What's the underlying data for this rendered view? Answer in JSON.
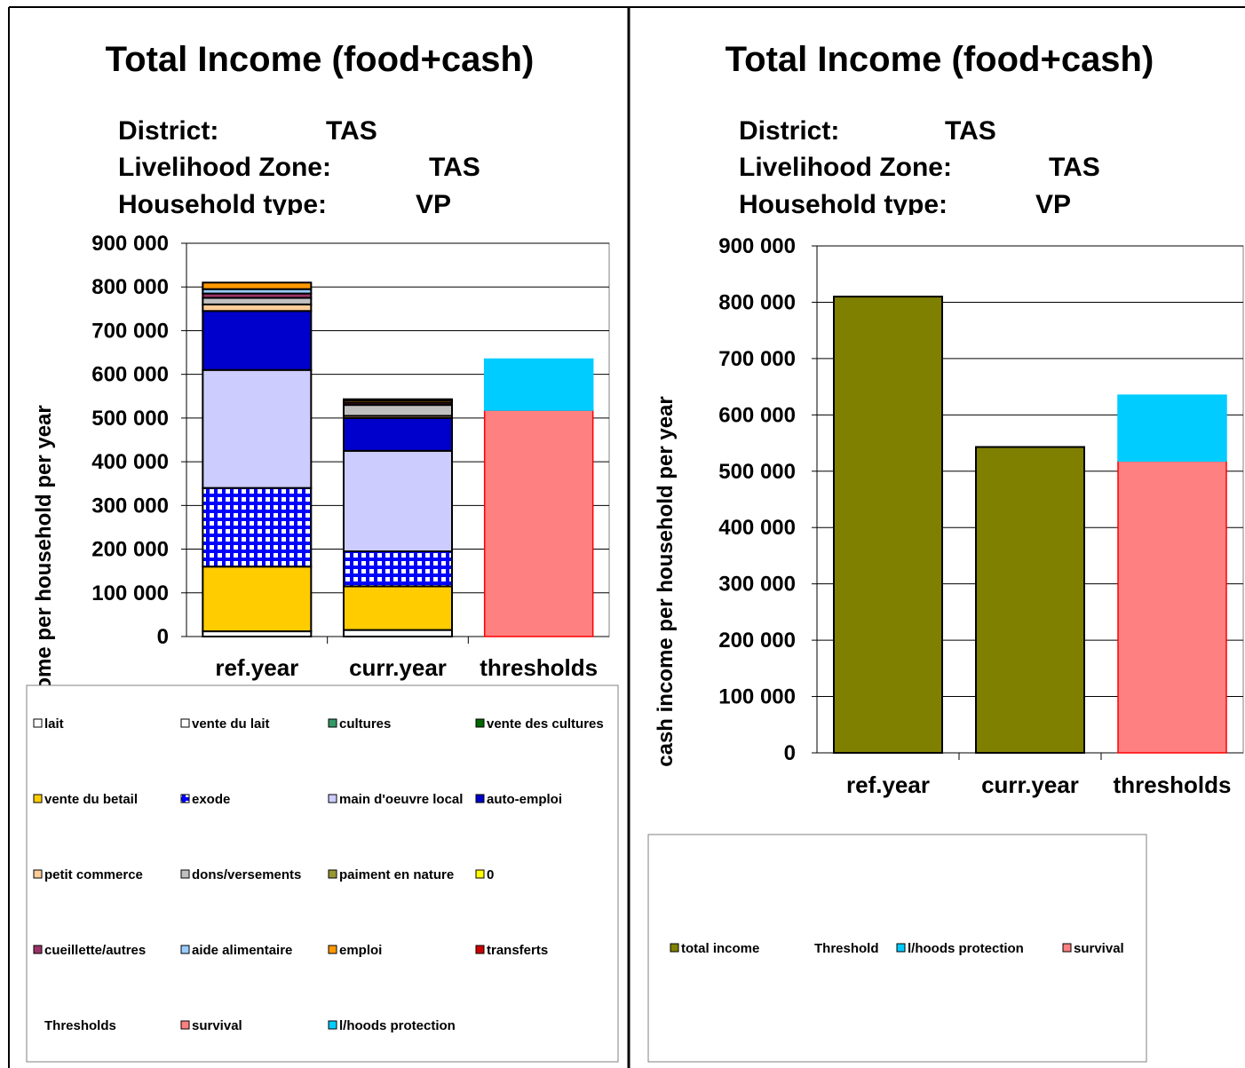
{
  "chart_data": [
    {
      "type": "bar",
      "stacked": true,
      "title": "Total Income (food+cash)",
      "info": [
        {
          "label": "District:",
          "value": "TAS"
        },
        {
          "label": "Livelihood Zone:",
          "value": "TAS"
        },
        {
          "label": "Household type:",
          "value": "VP"
        }
      ],
      "y_label": "cash income per household per year",
      "categories": [
        "ref.year",
        "curr.year",
        "thresholds"
      ],
      "ylim": [
        0,
        900000
      ],
      "yticks": [
        {
          "value": 0,
          "label": "0"
        },
        {
          "value": 100000,
          "label": "100 000"
        },
        {
          "value": 200000,
          "label": "200 000"
        },
        {
          "value": 300000,
          "label": "300 000"
        },
        {
          "value": 400000,
          "label": "400 000"
        },
        {
          "value": 500000,
          "label": "500 000"
        },
        {
          "value": 600000,
          "label": "600 000"
        },
        {
          "value": 700000,
          "label": "700 000"
        },
        {
          "value": 800000,
          "label": "800 000"
        },
        {
          "value": 900000,
          "label": "900 000"
        }
      ],
      "grid": true,
      "series": [
        {
          "name": "lait",
          "color": "#FFFFFF",
          "values": [
            12000,
            15000,
            0
          ]
        },
        {
          "name": "vente du lait",
          "color": "#FFFFFF",
          "values": [
            0,
            0,
            0
          ]
        },
        {
          "name": "cultures",
          "color": "#339966",
          "values": [
            0,
            0,
            0
          ]
        },
        {
          "name": "vente des cultures",
          "color": "#006600",
          "values": [
            0,
            0,
            0
          ]
        },
        {
          "name": "vente du betail",
          "color": "#FFCC00",
          "values": [
            148000,
            100000,
            0
          ]
        },
        {
          "name": "exode",
          "color": "#0000FF",
          "pattern": "grid",
          "values": [
            180000,
            80000,
            0
          ]
        },
        {
          "name": "main d'oeuvre local",
          "color": "#CCCCFF",
          "values": [
            270000,
            230000,
            0
          ]
        },
        {
          "name": "auto-emploi",
          "color": "#0000CC",
          "values": [
            135000,
            75000,
            0
          ]
        },
        {
          "name": "petit commerce",
          "color": "#FFCC99",
          "values": [
            15000,
            5000,
            0
          ]
        },
        {
          "name": "dons/versements",
          "color": "#C0C0C0",
          "values": [
            15000,
            25000,
            0
          ]
        },
        {
          "name": "paiment en nature",
          "color": "#999933",
          "values": [
            0,
            0,
            0
          ]
        },
        {
          "name": "0",
          "color": "#FFFF00",
          "values": [
            0,
            0,
            0
          ]
        },
        {
          "name": "cueillette/autres",
          "color": "#993366",
          "values": [
            10000,
            5000,
            0
          ]
        },
        {
          "name": "aide alimentaire",
          "color": "#99CCFF",
          "values": [
            10000,
            0,
            0
          ]
        },
        {
          "name": "emploi",
          "color": "#FF9900",
          "values": [
            15000,
            5000,
            0
          ]
        },
        {
          "name": "transferts",
          "color": "#CC0000",
          "values": [
            0,
            3000,
            0
          ]
        },
        {
          "name": "Thresholds",
          "color": null,
          "values": [
            null,
            null,
            null
          ]
        },
        {
          "name": "survival",
          "color": "#FF8080",
          "edgecolor": "#FF0000",
          "values": [
            0,
            0,
            518000
          ]
        },
        {
          "name": "l/hoods protection",
          "color": "#00CCFF",
          "edgecolor": "#00CCFF",
          "values": [
            0,
            0,
            117000
          ]
        }
      ]
    },
    {
      "type": "bar",
      "stacked": true,
      "title": "Total Income (food+cash)",
      "info": [
        {
          "label": "District:",
          "value": "TAS"
        },
        {
          "label": "Livelihood Zone:",
          "value": "TAS"
        },
        {
          "label": "Household type:",
          "value": "VP"
        }
      ],
      "y_label": "cash income per household per year",
      "categories": [
        "ref.year",
        "curr.year",
        "thresholds"
      ],
      "ylim": [
        0,
        900000
      ],
      "yticks": [
        {
          "value": 0,
          "label": "0"
        },
        {
          "value": 100000,
          "label": "100 000"
        },
        {
          "value": 200000,
          "label": "200 000"
        },
        {
          "value": 300000,
          "label": "300 000"
        },
        {
          "value": 400000,
          "label": "400 000"
        },
        {
          "value": 500000,
          "label": "500 000"
        },
        {
          "value": 600000,
          "label": "600 000"
        },
        {
          "value": 700000,
          "label": "700 000"
        },
        {
          "value": 800000,
          "label": "800 000"
        },
        {
          "value": 900000,
          "label": "900 000"
        }
      ],
      "grid": true,
      "series": [
        {
          "name": "total income",
          "color": "#808000",
          "values": [
            810000,
            543000,
            null
          ]
        },
        {
          "name": "Threshold",
          "color": null,
          "values": [
            null,
            null,
            null
          ]
        },
        {
          "name": "survival",
          "color": "#FF8080",
          "edgecolor": "#FF0000",
          "values": [
            null,
            null,
            518000
          ]
        },
        {
          "name": "l/hoods protection",
          "color": "#00CCFF",
          "edgecolor": "#00CCFF",
          "values": [
            null,
            null,
            117000
          ]
        }
      ],
      "legend_order": [
        0,
        1,
        3,
        2
      ]
    }
  ]
}
